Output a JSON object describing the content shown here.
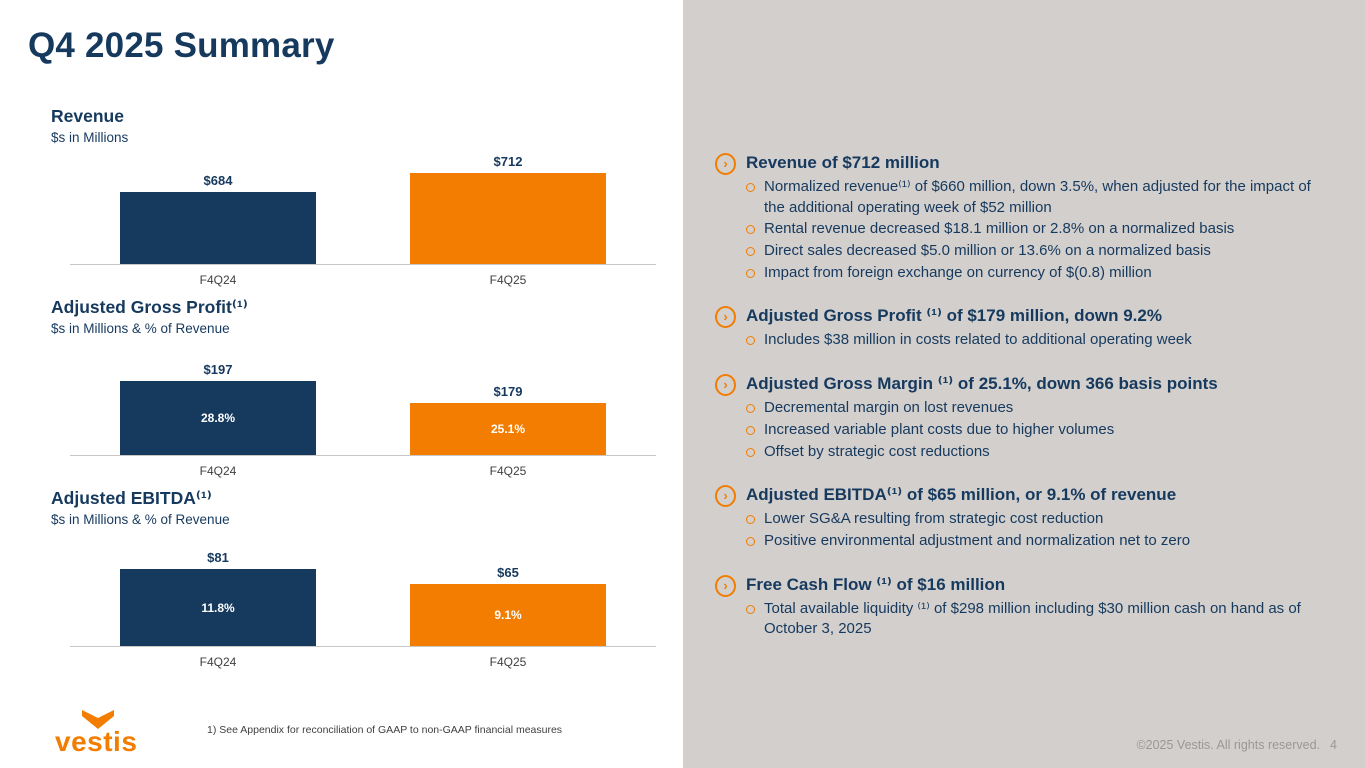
{
  "slide": {
    "title": "Q4 2025 Summary",
    "footnote": "1) See Appendix for reconciliation of GAAP to non-GAAP financial measures",
    "copyright": "©2025 Vestis. All rights reserved.",
    "page_number": "4",
    "logo_text": "vestis"
  },
  "colors": {
    "navy": "#16395e",
    "orange": "#f27d00",
    "panel_gray": "#d2cfcd"
  },
  "chart_data": [
    {
      "type": "bar",
      "title": "Revenue",
      "subtitle": "$s in Millions",
      "categories": [
        "F4Q24",
        "F4Q25"
      ],
      "values": [
        684,
        712
      ],
      "bar_labels": [
        "$684",
        "$712"
      ],
      "inner_labels": [
        "",
        ""
      ],
      "colors": [
        "#16395e",
        "#f27d00"
      ],
      "ylim": [
        577,
        714
      ],
      "legend": "none",
      "grid": false
    },
    {
      "type": "bar",
      "title": "Adjusted Gross Profit⁽¹⁾",
      "subtitle": "$s in Millions & % of Revenue",
      "categories": [
        "F4Q24",
        "F4Q25"
      ],
      "values": [
        197,
        179
      ],
      "bar_labels": [
        "$197",
        "$179"
      ],
      "inner_labels": [
        "28.8%",
        "25.1%"
      ],
      "colors": [
        "#16395e",
        "#f27d00"
      ],
      "ylim": [
        137,
        212
      ],
      "legend": "none",
      "grid": false
    },
    {
      "type": "bar",
      "title": "Adjusted EBITDA⁽¹⁾",
      "subtitle": "$s in Millions & % of Revenue",
      "categories": [
        "F4Q24",
        "F4Q25"
      ],
      "values": [
        81,
        65
      ],
      "bar_labels": [
        "$81",
        "$65"
      ],
      "inner_labels": [
        "11.8%",
        "9.1%"
      ],
      "colors": [
        "#16395e",
        "#f27d00"
      ],
      "ylim": [
        0,
        97
      ],
      "legend": "none",
      "grid": false
    }
  ],
  "bullets": [
    {
      "heading": "Revenue of $712 million",
      "items": [
        "Normalized revenue⁽¹⁾ of $660 million, down 3.5%, when adjusted for the impact of the additional operating week of $52 million",
        "Rental revenue decreased $18.1 million or 2.8% on a normalized basis",
        "Direct sales decreased $5.0 million or 13.6% on a normalized basis",
        "Impact from foreign exchange on currency of $(0.8) million"
      ]
    },
    {
      "heading": "Adjusted Gross Profit ⁽¹⁾ of $179 million, down 9.2%",
      "items": [
        "Includes $38 million in costs related to additional operating week"
      ]
    },
    {
      "heading": "Adjusted Gross Margin ⁽¹⁾ of 25.1%, down 366 basis points",
      "items": [
        "Decremental margin on lost revenues",
        "Increased variable plant costs due to higher volumes",
        "Offset by strategic cost reductions"
      ]
    },
    {
      "heading": "Adjusted EBITDA⁽¹⁾ of $65 million, or 9.1% of revenue",
      "items": [
        "Lower SG&A resulting from strategic cost reduction",
        "Positive environmental adjustment and normalization net to zero"
      ]
    },
    {
      "heading": "Free Cash Flow ⁽¹⁾ of $16 million",
      "items": [
        "Total available liquidity ⁽¹⁾ of $298 million including $30 million cash on hand as of October 3, 2025"
      ]
    }
  ]
}
